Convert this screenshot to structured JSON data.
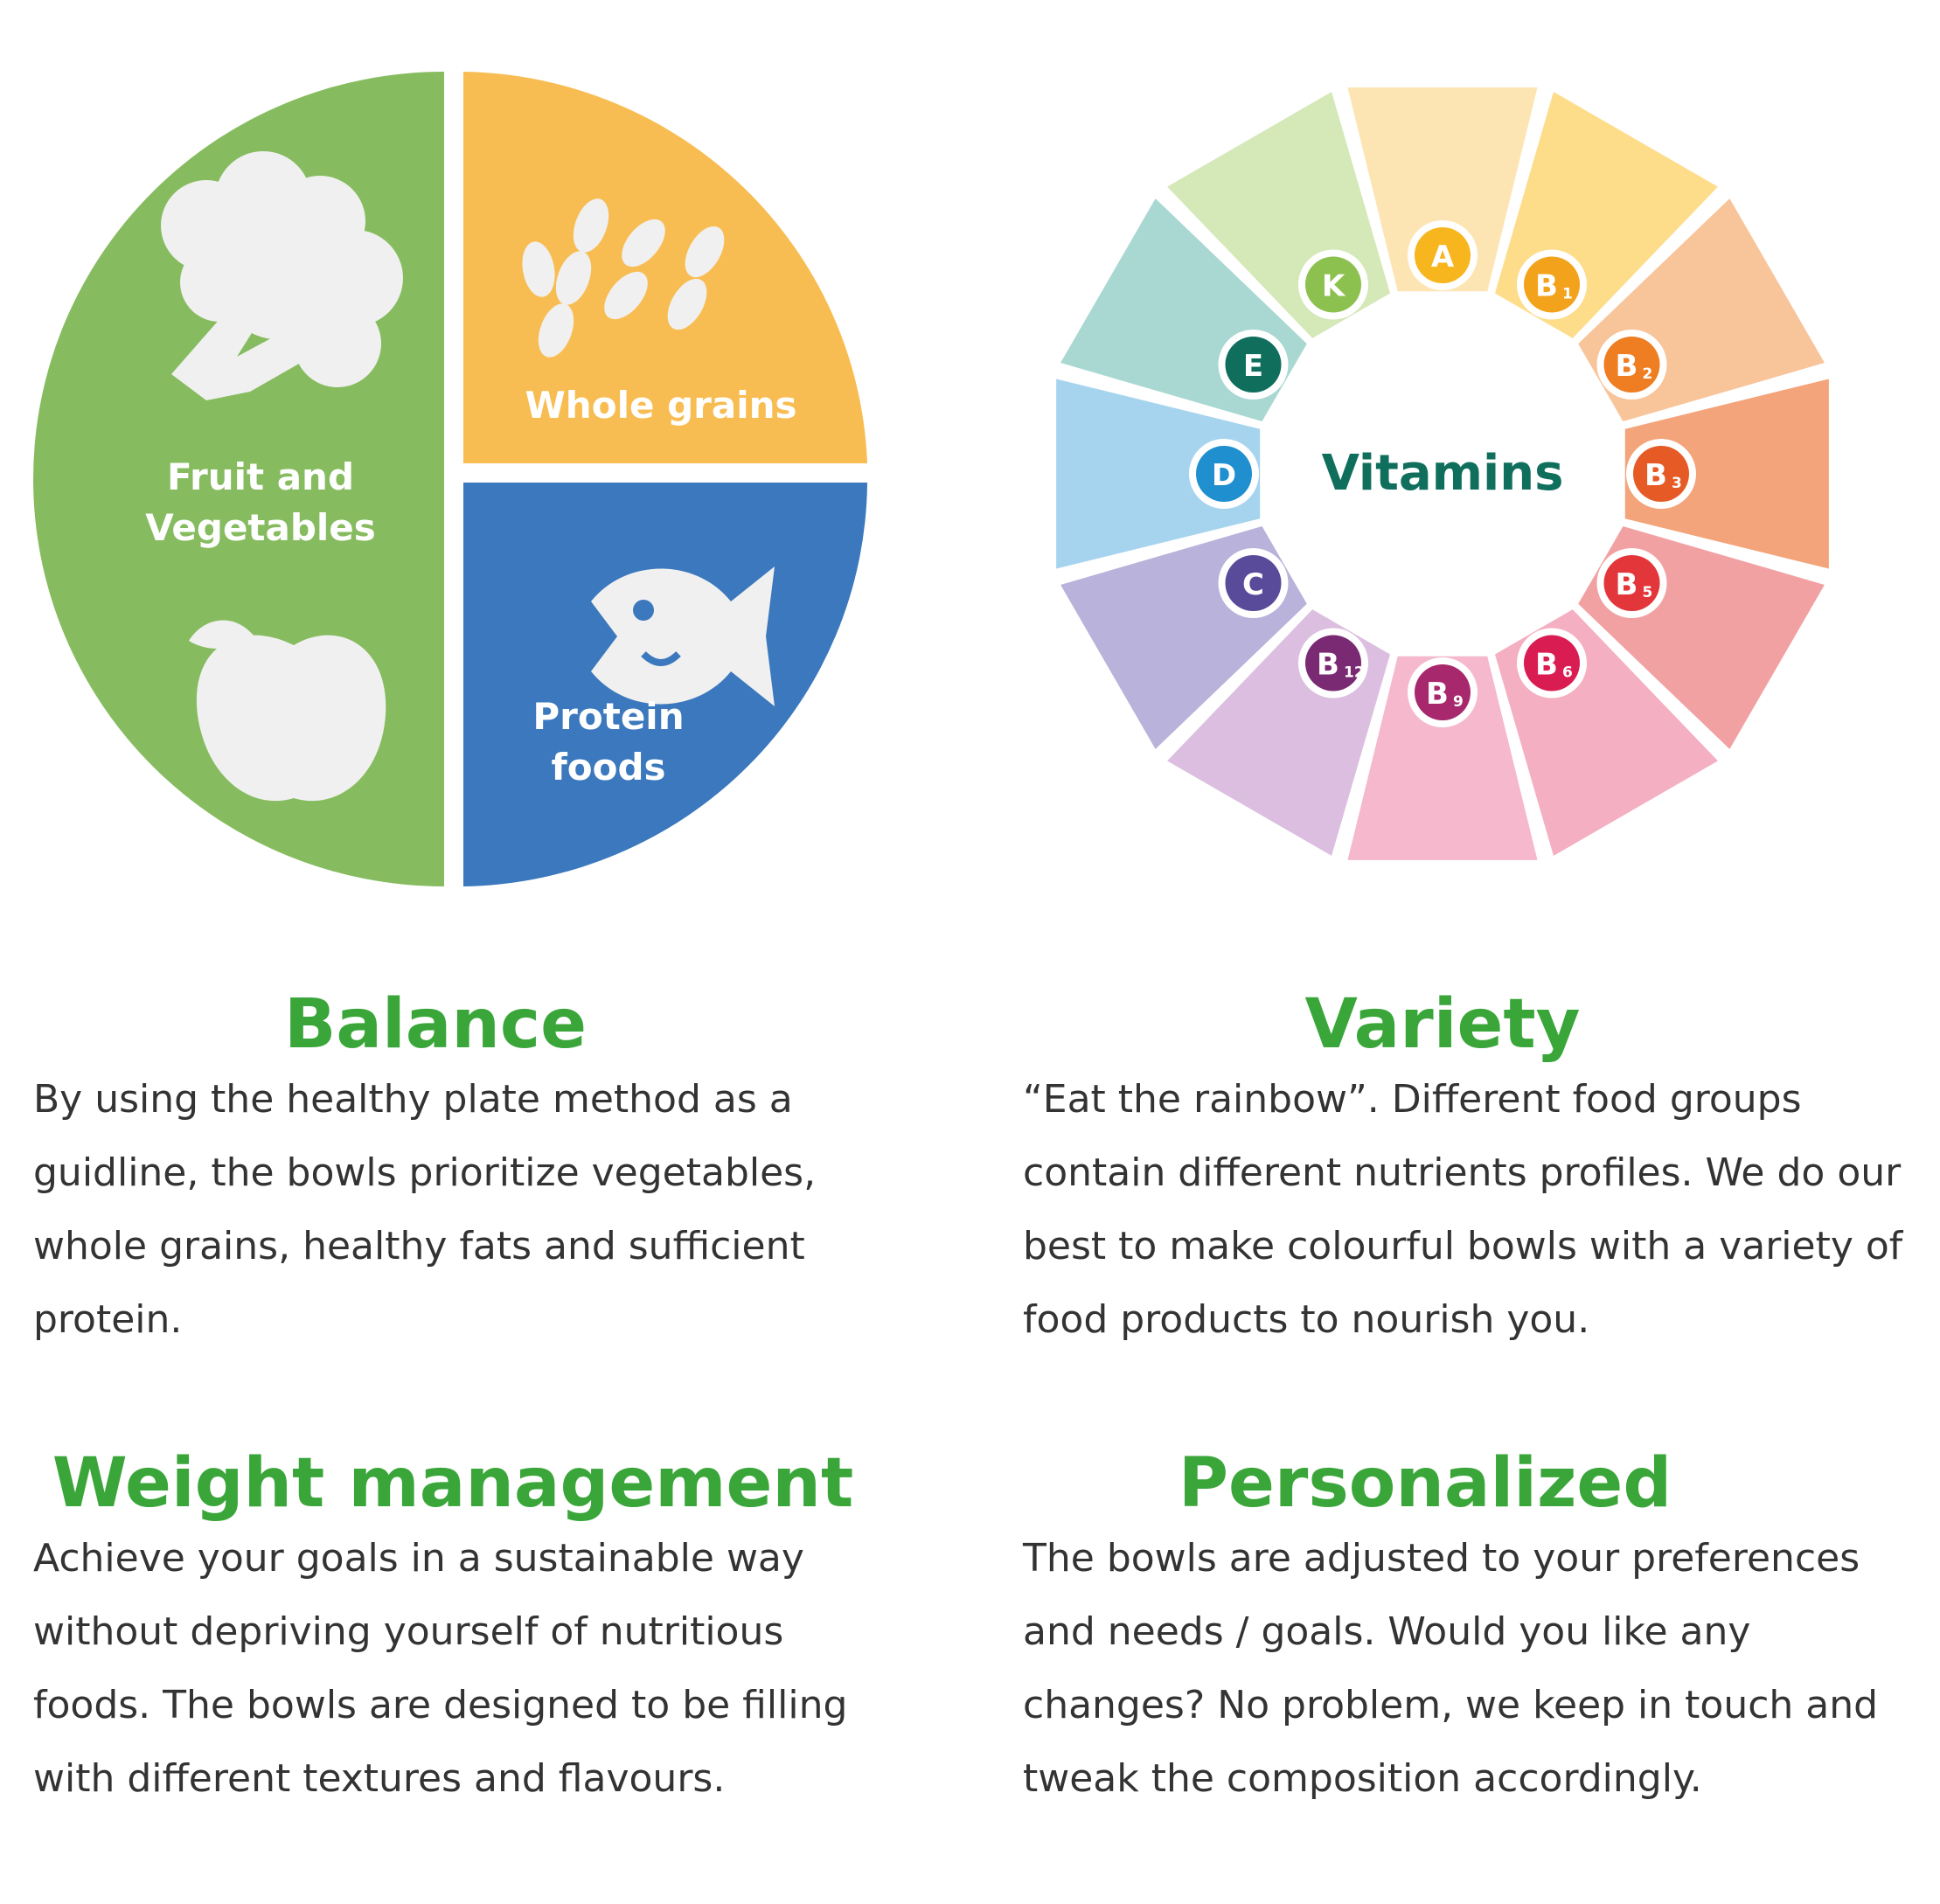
{
  "plate": {
    "fruit_veg_line1": "Fruit and",
    "fruit_veg_line2": "Vegetables",
    "whole_grains": "Whole grains",
    "protein_line1": "Protein",
    "protein_line2": "foods",
    "colors": {
      "fruit_veg": "#86bc5f",
      "grains": "#f8bd52",
      "protein": "#3b78bd"
    },
    "icons": [
      "broccoli-icon",
      "apple-icon",
      "wheat-icon",
      "fish-icon"
    ]
  },
  "vitamins": {
    "center_label": "Vitamins",
    "badges": [
      {
        "letter": "A",
        "sub": "",
        "color": "#f7b51e"
      },
      {
        "letter": "B",
        "sub": "1",
        "color": "#f3a21b"
      },
      {
        "letter": "B",
        "sub": "2",
        "color": "#ef7d22"
      },
      {
        "letter": "B",
        "sub": "3",
        "color": "#e55a25"
      },
      {
        "letter": "B",
        "sub": "5",
        "color": "#e2363a"
      },
      {
        "letter": "B",
        "sub": "6",
        "color": "#d91d52"
      },
      {
        "letter": "B",
        "sub": "9",
        "color": "#a8286d"
      },
      {
        "letter": "B",
        "sub": "12",
        "color": "#7a2a73"
      },
      {
        "letter": "C",
        "sub": "",
        "color": "#5a4a9a"
      },
      {
        "letter": "D",
        "sub": "",
        "color": "#1f8fcf"
      },
      {
        "letter": "E",
        "sub": "",
        "color": "#0f6f5c"
      },
      {
        "letter": "K",
        "sub": "",
        "color": "#8dc14f"
      }
    ],
    "segment_colors": [
      "#fde5b3",
      "#fddc8a",
      "#f8c49a",
      "#f3a47b",
      "#f2a1a3",
      "#f4afc2",
      "#f5b8cd",
      "#dcbfe0",
      "#b9b2da",
      "#a6d4ef",
      "#a9d8d2",
      "#d4e8b8"
    ],
    "center_text_color": "#0f6f5c"
  },
  "sections": {
    "balance": {
      "title": "Balance",
      "body": "By using the healthy plate method as a guidline, the bowls prioritize vegetables, whole grains, healthy fats and sufficient protein."
    },
    "variety": {
      "title": "Variety",
      "body": "“Eat the rainbow”. Different food groups contain different nutrients profiles. We do our best to make colourful bowls with a variety of food products to nourish you."
    },
    "weight": {
      "title": "Weight management",
      "body": "Achieve your goals in a sustainable way without depriving yourself of nutritious foods. The bowls are designed to be filling with different textures and flavours."
    },
    "personalized": {
      "title": "Personalized",
      "body": "The bowls are adjusted to your preferences and needs / goals. Would you like any changes? No problem, we keep in touch and tweak the composition accordingly."
    }
  }
}
